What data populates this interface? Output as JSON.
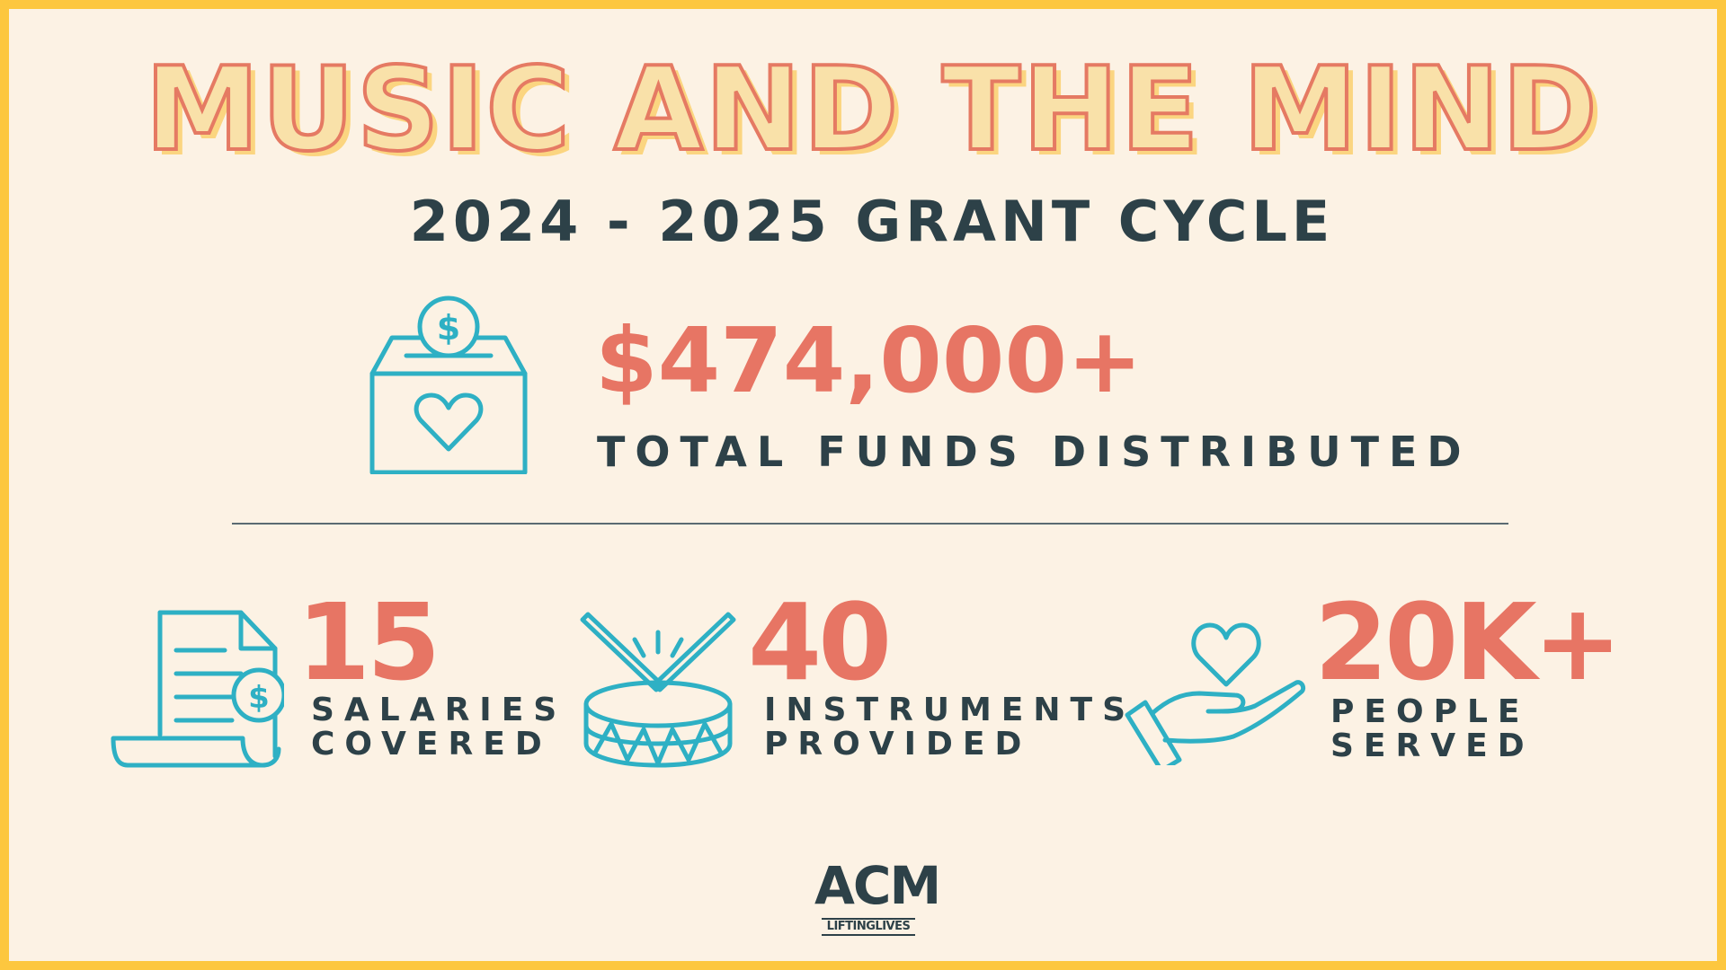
{
  "title": "MUSIC AND THE MIND",
  "subtitle": "2024 - 2025 GRANT CYCLE",
  "colors": {
    "background": "#fcf2e4",
    "border": "#fdc73f",
    "accent_number": "#e77564",
    "icon": "#2eb0c4",
    "text_dark": "#2d4148",
    "title_fill": "#f9e1a9",
    "title_stroke": "#e57a63"
  },
  "headline_stat": {
    "value": "$474,000+",
    "label": "TOTAL FUNDS DISTRIBUTED",
    "icon": "donation-box-icon"
  },
  "stats": [
    {
      "value": "15",
      "label_line1": "SALARIES",
      "label_line2": "COVERED",
      "icon": "invoice-dollar-icon"
    },
    {
      "value": "40",
      "label_line1": "INSTRUMENTS",
      "label_line2": "PROVIDED",
      "icon": "drum-icon"
    },
    {
      "value": "20K+",
      "label_line1": "PEOPLE",
      "label_line2": "SERVED",
      "icon": "hand-heart-icon"
    }
  ],
  "logo": {
    "main": "ACM",
    "sub": "LIFTINGLIVES"
  }
}
